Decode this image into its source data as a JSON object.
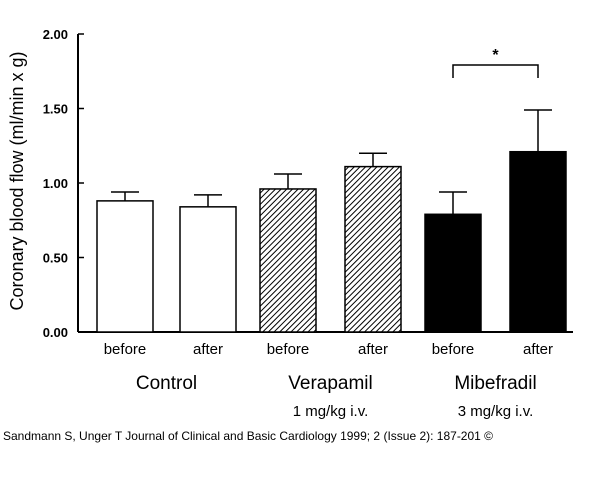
{
  "chart_data": {
    "type": "bar",
    "title": "",
    "ylabel": "Coronary blood flow (ml/min x g)",
    "xlabel": "",
    "ylim": [
      0,
      2.0
    ],
    "yticks": [
      "0.00",
      "0.50",
      "1.00",
      "1.50",
      "2.00"
    ],
    "grid": false,
    "categories": [
      "before",
      "after",
      "before",
      "after",
      "before",
      "after"
    ],
    "groups": [
      {
        "name": "Control",
        "dose": ""
      },
      {
        "name": "Verapamil",
        "dose": "1 mg/kg i.v."
      },
      {
        "name": "Mibefradil",
        "dose": "3 mg/kg i.v."
      }
    ],
    "values": [
      0.88,
      0.84,
      0.96,
      1.11,
      0.79,
      1.21
    ],
    "errors": [
      0.06,
      0.08,
      0.1,
      0.09,
      0.15,
      0.28
    ],
    "fills": [
      "white",
      "white",
      "hatch",
      "hatch",
      "black",
      "black"
    ],
    "annotation": {
      "text": "*",
      "between": [
        4,
        5
      ]
    }
  },
  "colors": {
    "ink": "#000000",
    "background": "#ffffff"
  },
  "citation": "Sandmann S, Unger T Journal of Clinical and Basic Cardiology 1999; 2 (Issue 2): 187-201 ©"
}
